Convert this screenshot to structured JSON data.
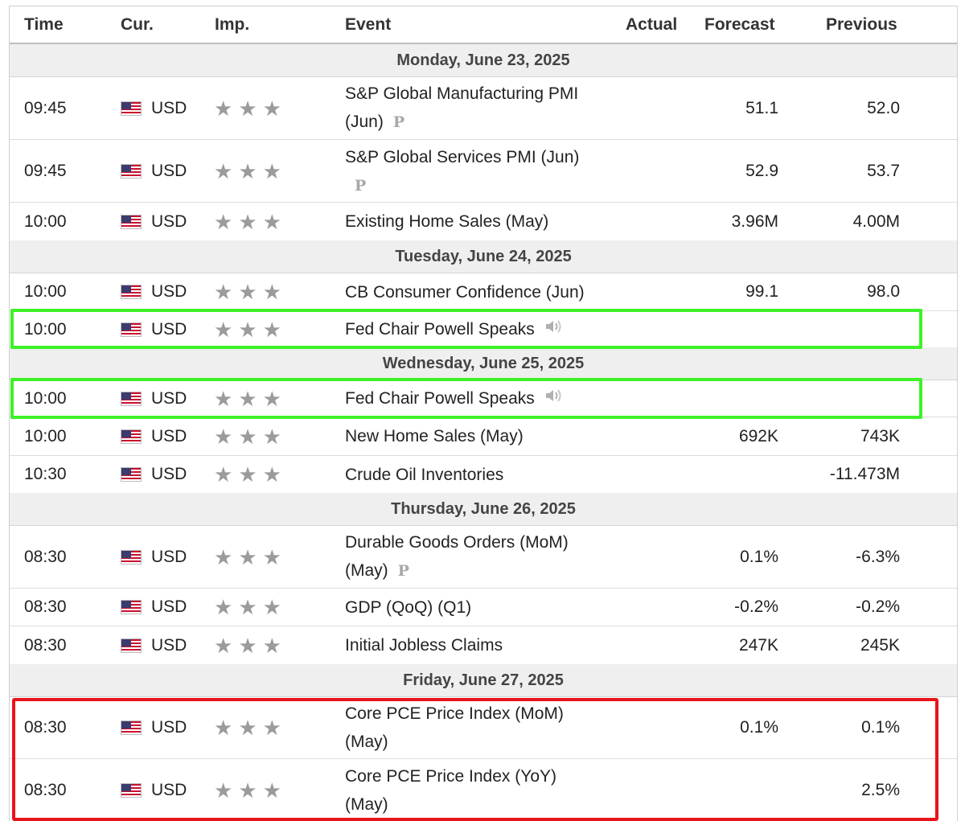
{
  "columns": {
    "time": "Time",
    "currency": "Cur.",
    "importance": "Imp.",
    "event": "Event",
    "actual": "Actual",
    "forecast": "Forecast",
    "previous": "Previous"
  },
  "colors": {
    "highlight_green": "#3ef127",
    "highlight_red": "#e8141b",
    "star_gray": "#9b9b9b",
    "date_band": "#efefef"
  },
  "days": [
    {
      "date": "Monday, June 23, 2025",
      "events": [
        {
          "time": "09:45",
          "currency": "USD",
          "importance_stars": 3,
          "event": [
            "S&P Global Manufacturing PMI",
            "(Jun)"
          ],
          "preliminary": true,
          "actual": "",
          "forecast": "51.1",
          "previous": "52.0"
        },
        {
          "time": "09:45",
          "currency": "USD",
          "importance_stars": 3,
          "event": [
            "S&P Global Services PMI (Jun)",
            ""
          ],
          "preliminary": true,
          "actual": "",
          "forecast": "52.9",
          "previous": "53.7"
        },
        {
          "time": "10:00",
          "currency": "USD",
          "importance_stars": 3,
          "event": [
            "Existing Home Sales (May)"
          ],
          "preliminary": false,
          "actual": "",
          "forecast": "3.96M",
          "previous": "4.00M"
        }
      ]
    },
    {
      "date": "Tuesday, June 24, 2025",
      "events": [
        {
          "time": "10:00",
          "currency": "USD",
          "importance_stars": 3,
          "event": [
            "CB Consumer Confidence (Jun)"
          ],
          "preliminary": false,
          "actual": "",
          "forecast": "99.1",
          "previous": "98.0"
        },
        {
          "time": "10:00",
          "currency": "USD",
          "importance_stars": 3,
          "event": [
            "Fed Chair Powell Speaks"
          ],
          "speech": true,
          "actual": "",
          "forecast": "",
          "previous": "",
          "highlight": "green"
        }
      ]
    },
    {
      "date": "Wednesday, June 25, 2025",
      "events": [
        {
          "time": "10:00",
          "currency": "USD",
          "importance_stars": 3,
          "event": [
            "Fed Chair Powell Speaks"
          ],
          "speech": true,
          "actual": "",
          "forecast": "",
          "previous": "",
          "highlight": "green"
        },
        {
          "time": "10:00",
          "currency": "USD",
          "importance_stars": 3,
          "event": [
            "New Home Sales (May)"
          ],
          "actual": "",
          "forecast": "692K",
          "previous": "743K"
        },
        {
          "time": "10:30",
          "currency": "USD",
          "importance_stars": 3,
          "event": [
            "Crude Oil Inventories"
          ],
          "actual": "",
          "forecast": "",
          "previous": "-11.473M"
        }
      ]
    },
    {
      "date": "Thursday, June 26, 2025",
      "events": [
        {
          "time": "08:30",
          "currency": "USD",
          "importance_stars": 3,
          "event": [
            "Durable Goods Orders (MoM)",
            "(May)"
          ],
          "preliminary": true,
          "actual": "",
          "forecast": "0.1%",
          "previous": "-6.3%"
        },
        {
          "time": "08:30",
          "currency": "USD",
          "importance_stars": 3,
          "event": [
            "GDP (QoQ) (Q1)"
          ],
          "actual": "",
          "forecast": "-0.2%",
          "previous": "-0.2%"
        },
        {
          "time": "08:30",
          "currency": "USD",
          "importance_stars": 3,
          "event": [
            "Initial Jobless Claims"
          ],
          "actual": "",
          "forecast": "247K",
          "previous": "245K"
        }
      ]
    },
    {
      "date": "Friday, June 27, 2025",
      "events": [
        {
          "time": "08:30",
          "currency": "USD",
          "importance_stars": 3,
          "event": [
            "Core PCE Price Index (MoM)",
            "(May)"
          ],
          "actual": "",
          "forecast": "0.1%",
          "previous": "0.1%",
          "highlight": "red"
        },
        {
          "time": "08:30",
          "currency": "USD",
          "importance_stars": 3,
          "event": [
            "Core PCE Price Index (YoY)",
            "(May)"
          ],
          "actual": "",
          "forecast": "",
          "previous": "2.5%",
          "highlight": "red"
        }
      ]
    }
  ]
}
